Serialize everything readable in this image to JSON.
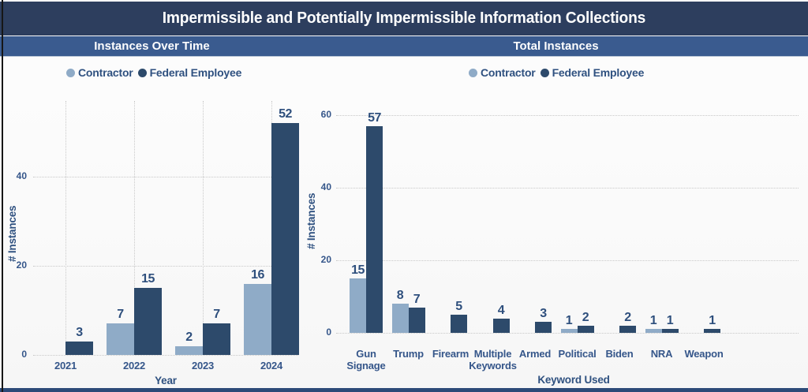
{
  "title": "Impermissible and Potentially Impermissible Information Collections",
  "sections": {
    "left_header": "Instances Over Time",
    "right_header": "Total Instances"
  },
  "legend": {
    "contractor_label": "Contractor",
    "federal_label": "Federal Employee"
  },
  "colors": {
    "title_bar": "#2d3e5e",
    "section_bar": "#3a5b8f",
    "contractor": "#8fabc7",
    "federal": "#2d4a6b",
    "chart_text": "#35568a",
    "data_label_text": "#2e4f7d",
    "gridline": "#c9c9c9",
    "bottom_strip": "#2d4a78"
  },
  "chart_data": [
    {
      "type": "bar",
      "title": "Instances Over Time",
      "categories": [
        "2021",
        "2022",
        "2023",
        "2024"
      ],
      "series": [
        {
          "name": "Contractor",
          "values": [
            0,
            7,
            2,
            16
          ]
        },
        {
          "name": "Federal Employee",
          "values": [
            3,
            15,
            7,
            52
          ]
        }
      ],
      "xlabel": "Year",
      "ylabel": "# Instances",
      "ylim": [
        0,
        57
      ],
      "yticks": [
        0,
        20,
        40
      ],
      "grid": "horizontal+vertical",
      "legend_position": "top"
    },
    {
      "type": "bar",
      "title": "Total Instances",
      "categories": [
        "Gun Signage",
        "Trump",
        "Firearm",
        "Multiple Keywords",
        "Armed",
        "Political",
        "Biden",
        "NRA",
        "Weapon"
      ],
      "series": [
        {
          "name": "Contractor",
          "values": [
            15,
            8,
            0,
            0,
            0,
            1,
            0,
            1,
            0
          ]
        },
        {
          "name": "Federal Employee",
          "values": [
            57,
            7,
            5,
            4,
            3,
            2,
            2,
            1,
            1
          ]
        }
      ],
      "xlabel": "Keyword Used",
      "ylabel": "# Instances",
      "ylim": [
        0,
        63
      ],
      "yticks": [
        0,
        20,
        40,
        60
      ],
      "grid": "horizontal",
      "legend_position": "top"
    }
  ]
}
